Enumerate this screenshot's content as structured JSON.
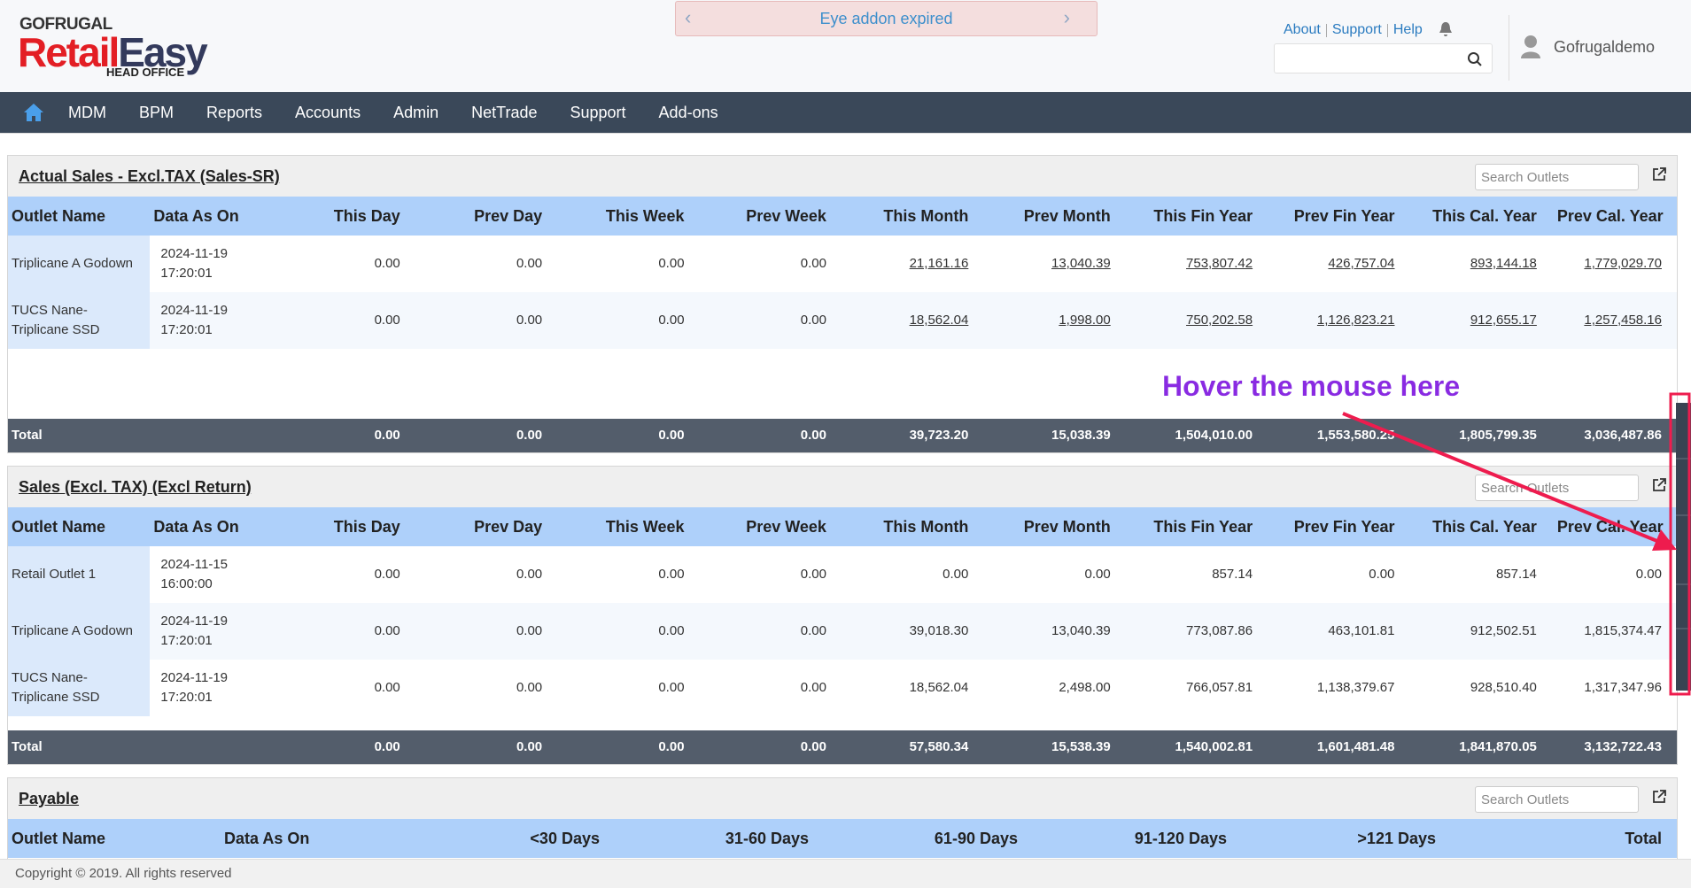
{
  "header": {
    "brand": "GOFRUGAL",
    "logo_retail": "Retail",
    "logo_easy": "Easy",
    "logo_sub": "HEAD OFFICE",
    "banner": "Eye addon expired",
    "links": [
      "About",
      "Support",
      "Help"
    ],
    "user": "Gofrugaldemo"
  },
  "nav": [
    "MDM",
    "BPM",
    "Reports",
    "Accounts",
    "Admin",
    "NetTrade",
    "Support",
    "Add-ons"
  ],
  "panels": [
    {
      "title": "Actual Sales - Excl.TAX (Sales-SR)",
      "search": "Search Outlets",
      "columns": [
        "Outlet Name",
        "Data As On",
        "This Day",
        "Prev Day",
        "This Week",
        "Prev Week",
        "This Month",
        "Prev Month",
        "This Fin Year",
        "Prev Fin Year",
        "This Cal. Year",
        "Prev Cal. Year"
      ],
      "rows": [
        [
          "Triplicane A Godown",
          "2024-11-19 17:20:01",
          "0.00",
          "0.00",
          "0.00",
          "0.00",
          "21,161.16",
          "13,040.39",
          "753,807.42",
          "426,757.04",
          "893,144.18",
          "1,779,029.70"
        ],
        [
          "TUCS Nane- Triplicane SSD",
          "2024-11-19 17:20:01",
          "0.00",
          "0.00",
          "0.00",
          "0.00",
          "18,562.04",
          "1,998.00",
          "750,202.58",
          "1,126,823.21",
          "912,655.17",
          "1,257,458.16"
        ]
      ],
      "total": {
        "label": "Total",
        "values": [
          "0.00",
          "0.00",
          "0.00",
          "0.00",
          "39,723.20",
          "15,038.39",
          "1,504,010.00",
          "1,553,580.25",
          "1,805,799.35",
          "3,036,487.86"
        ]
      }
    },
    {
      "title": "Sales (Excl. TAX) (Excl Return)",
      "search": "Search Outlets",
      "columns": [
        "Outlet Name",
        "Data As On",
        "This Day",
        "Prev Day",
        "This Week",
        "Prev Week",
        "This Month",
        "Prev Month",
        "This Fin Year",
        "Prev Fin Year",
        "This Cal. Year",
        "Prev Cal. Year"
      ],
      "rows": [
        [
          "Retail Outlet 1",
          "2024-11-15 16:00:00",
          "0.00",
          "0.00",
          "0.00",
          "0.00",
          "0.00",
          "0.00",
          "857.14",
          "0.00",
          "857.14",
          "0.00"
        ],
        [
          "Triplicane A Godown",
          "2024-11-19 17:20:01",
          "0.00",
          "0.00",
          "0.00",
          "0.00",
          "39,018.30",
          "13,040.39",
          "773,087.86",
          "463,101.81",
          "912,502.51",
          "1,815,374.47"
        ],
        [
          "TUCS Nane- Triplicane SSD",
          "2024-11-19 17:20:01",
          "0.00",
          "0.00",
          "0.00",
          "0.00",
          "18,562.04",
          "2,498.00",
          "766,057.81",
          "1,138,379.67",
          "928,510.40",
          "1,317,347.96"
        ]
      ],
      "total": {
        "label": "Total",
        "values": [
          "0.00",
          "0.00",
          "0.00",
          "0.00",
          "57,580.34",
          "15,538.39",
          "1,540,002.81",
          "1,601,481.48",
          "1,841,870.05",
          "3,132,722.43"
        ]
      }
    },
    {
      "title": "Payable",
      "search": "Search Outlets",
      "columns": [
        "Outlet Name",
        "Data As On",
        "<30 Days",
        "31-60 Days",
        "61-90 Days",
        "91-120 Days",
        ">121 Days",
        "Total"
      ]
    }
  ],
  "annotation": "Hover the mouse here",
  "footer": "Copyright © 2019. All rights reserved"
}
